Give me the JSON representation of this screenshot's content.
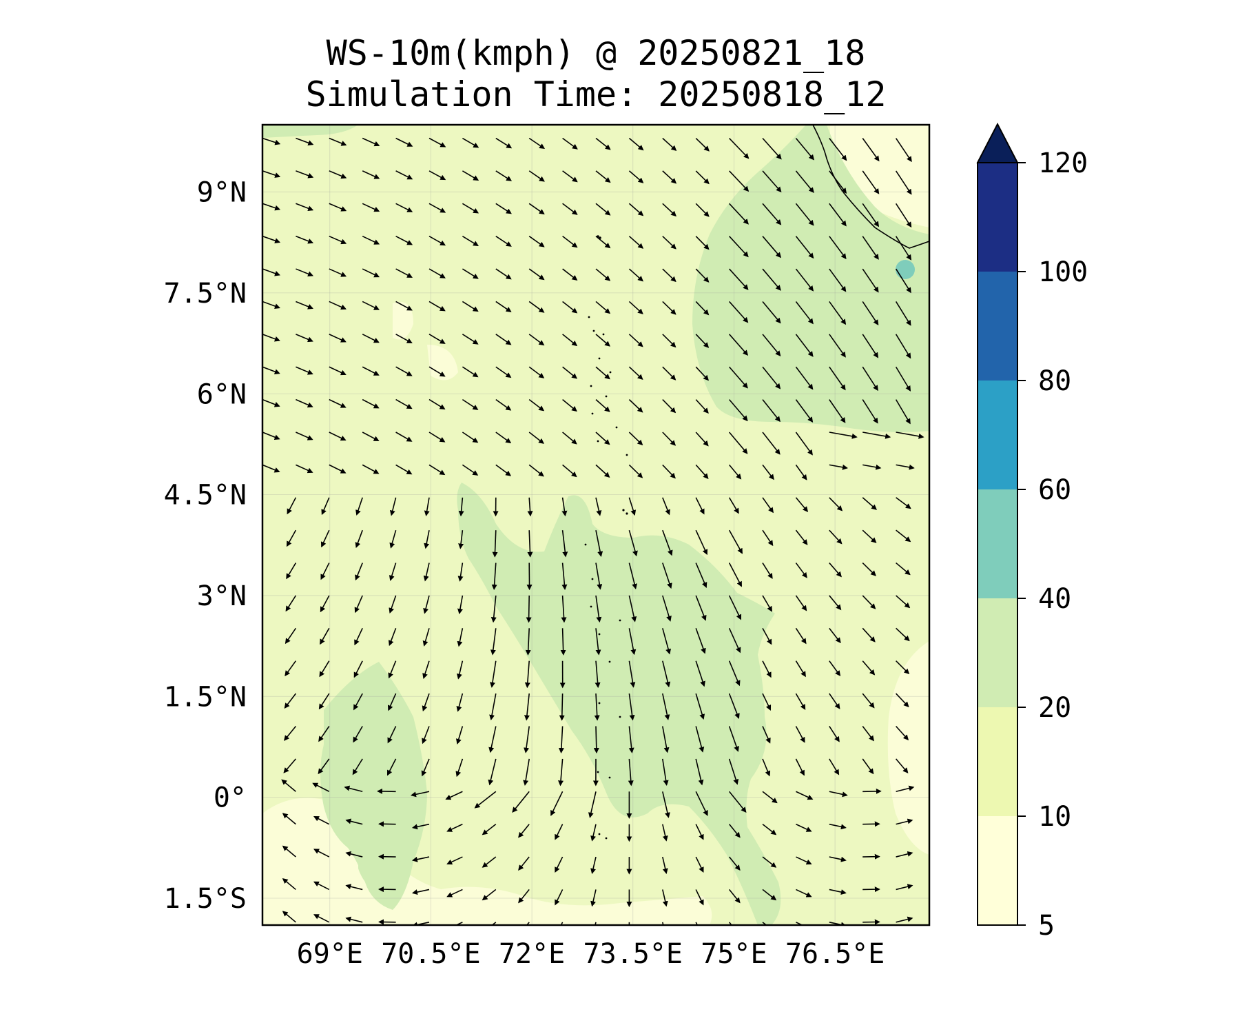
{
  "title": {
    "line1": "WS-10m(kmph) @ 20250821_18",
    "line2": "Simulation Time: 20250818_12"
  },
  "map": {
    "extent": {
      "lon_min": 68.0,
      "lon_max": 77.9,
      "lat_min": -1.9,
      "lat_max": 10.0
    },
    "lat_ticks": [
      {
        "value": 9.0,
        "label": "9°N"
      },
      {
        "value": 7.5,
        "label": "7.5°N"
      },
      {
        "value": 6.0,
        "label": "6°N"
      },
      {
        "value": 4.5,
        "label": "4.5°N"
      },
      {
        "value": 3.0,
        "label": "3°N"
      },
      {
        "value": 1.5,
        "label": "1.5°N"
      },
      {
        "value": 0.0,
        "label": "0°"
      },
      {
        "value": -1.5,
        "label": "1.5°S"
      }
    ],
    "lon_ticks": [
      {
        "value": 69.0,
        "label": "69°E"
      },
      {
        "value": 70.5,
        "label": "70.5°E"
      },
      {
        "value": 72.0,
        "label": "72°E"
      },
      {
        "value": 73.5,
        "label": "73.5°E"
      },
      {
        "value": 75.0,
        "label": "75°E"
      },
      {
        "value": 76.5,
        "label": "76.5°E"
      }
    ],
    "gridlines": true,
    "background_color": "#edf8c1"
  },
  "colorbar": {
    "levels": [
      {
        "value": 5,
        "label": "5"
      },
      {
        "value": 10,
        "label": "10"
      },
      {
        "value": 20,
        "label": "20"
      },
      {
        "value": 40,
        "label": "40"
      },
      {
        "value": 60,
        "label": "60"
      },
      {
        "value": 80,
        "label": "80"
      },
      {
        "value": 100,
        "label": "100"
      },
      {
        "value": 120,
        "label": "120"
      }
    ],
    "colors": [
      "#ffffd9",
      "#edf8b1",
      "#d0ecb3",
      "#7fcdbb",
      "#2ca0c6",
      "#2264ab",
      "#1c2e84"
    ],
    "extend_color": "#0a1f59",
    "extend": "max"
  }
}
